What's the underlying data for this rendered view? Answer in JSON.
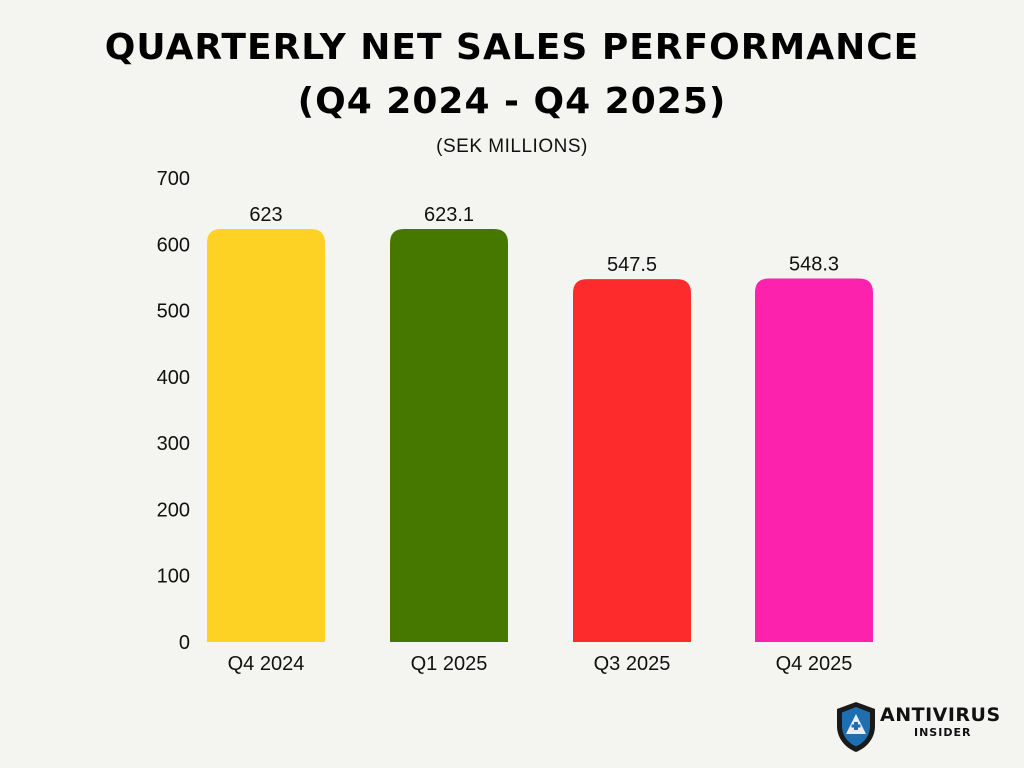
{
  "chart_data": {
    "type": "bar",
    "title_line_1": "QUARTERLY NET SALES PERFORMANCE",
    "title_line_2": "(Q4 2024 - Q4 2025)",
    "subtitle": "(SEK MILLIONS)",
    "categories": [
      "Q4 2024",
      "Q1 2025",
      "Q3 2025",
      "Q4 2025"
    ],
    "values": [
      623,
      623.1,
      547.5,
      548.3
    ],
    "value_labels": [
      "623",
      "623.1",
      "547.5",
      "548.3"
    ],
    "colors": [
      "#fdd225",
      "#467800",
      "#fd2b2b",
      "#fd22ad"
    ],
    "ylim": [
      0,
      700
    ],
    "yticks": [
      0,
      100,
      200,
      300,
      400,
      500,
      600,
      700
    ],
    "grid": false,
    "legend": "none"
  },
  "logo": {
    "main": "ANTIVIRUS",
    "sub": "INSIDER",
    "shield_color": "#1f6fb0"
  }
}
